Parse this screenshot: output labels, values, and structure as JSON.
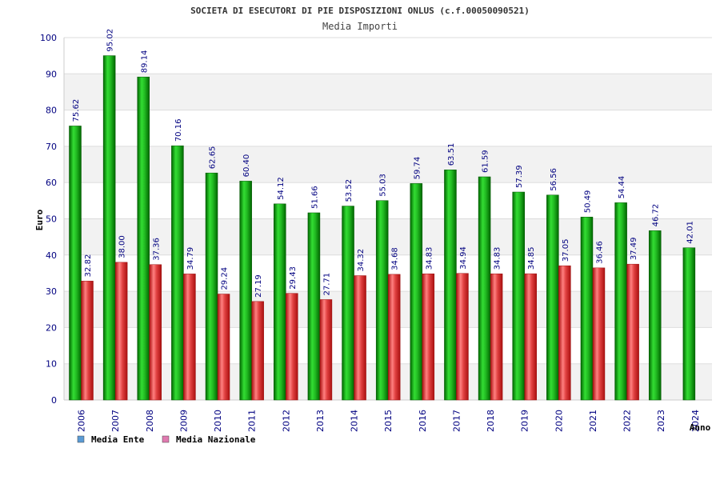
{
  "chart_data": {
    "type": "bar",
    "title": "SOCIETA DI ESECUTORI DI PIE DISPOSIZIONI ONLUS (c.f.00050090521)",
    "subtitle": "Media Importi",
    "xlabel": "Anno",
    "ylabel": "Euro",
    "ylim": [
      0,
      100
    ],
    "yticks": [
      0,
      10,
      20,
      30,
      40,
      50,
      60,
      70,
      80,
      90,
      100
    ],
    "categories": [
      "2006",
      "2007",
      "2008",
      "2009",
      "2010",
      "2011",
      "2012",
      "2013",
      "2014",
      "2015",
      "2016",
      "2017",
      "2018",
      "2019",
      "2020",
      "2021",
      "2022",
      "2023",
      "2024"
    ],
    "series": [
      {
        "name": "Media Ente",
        "legend_color": "#5b9bd5",
        "bar_color": "#22aa22",
        "values": [
          75.62,
          95.02,
          89.14,
          70.16,
          62.65,
          60.4,
          54.12,
          51.66,
          53.52,
          55.03,
          59.74,
          63.51,
          61.59,
          57.39,
          56.56,
          50.49,
          54.44,
          46.72,
          42.01
        ],
        "labels": [
          "75.62",
          "95.02",
          "89.14",
          "70.16",
          "62.65",
          "60.40",
          "54.12",
          "51.66",
          "53.52",
          "55.03",
          "59.74",
          "63.51",
          "61.59",
          "57.39",
          "56.56",
          "50.49",
          "54.44",
          "46.72",
          "42.01"
        ]
      },
      {
        "name": "Media Nazionale",
        "legend_color": "#e07ab0",
        "bar_color": "#e03838",
        "values": [
          32.82,
          38.0,
          37.36,
          34.79,
          29.24,
          27.19,
          29.43,
          27.71,
          34.32,
          34.68,
          34.83,
          34.94,
          34.83,
          34.85,
          37.05,
          36.46,
          37.49,
          null,
          null
        ],
        "labels": [
          "32.82",
          "38.00",
          "37.36",
          "34.79",
          "29.24",
          "27.19",
          "29.43",
          "27.71",
          "34.32",
          "34.68",
          "34.83",
          "34.94",
          "34.83",
          "34.85",
          "37.05",
          "36.46",
          "37.49",
          null,
          null
        ]
      }
    ],
    "grid": true,
    "legend_position": "bottom-left"
  }
}
